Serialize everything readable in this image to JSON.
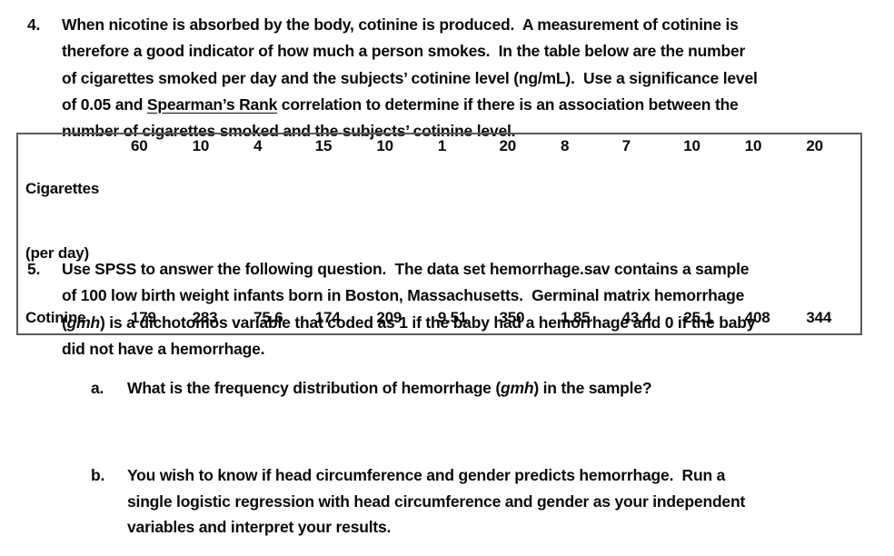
{
  "q4": {
    "number": "4.",
    "line1": "When nicotine is absorbed by the body, cotinine is produced.  A measurement of cotinine is",
    "line2": "therefore a good indicator of how much a person smokes.  In the table below are the number",
    "line3": "of cigarettes smoked per day and the subjects’ cotinine level (ng/mL).  Use a significance level",
    "line4_pre": "of 0.05 and ",
    "line4_underline": "Spearman’s Rank",
    "line4_post": " correlation to determine if there is an association between the",
    "line5": "number of cigarettes smoked and the subjects’ cotinine level."
  },
  "table": {
    "row1_label_line1": "Cigarettes",
    "row1_label_line2": "(per day)",
    "row1_values": [
      "60",
      "10",
      "4",
      "15",
      "10",
      "1",
      "20",
      "8",
      "7",
      "10",
      "10",
      "20"
    ],
    "row2_label": "Cotinine",
    "row2_values": [
      "179",
      "283",
      "75.6",
      "174",
      "209",
      "9.51",
      "350",
      "1.85",
      "43.4",
      "25.1",
      "408",
      "344"
    ]
  },
  "q5": {
    "number": "5.",
    "line1": "Use SPSS to answer the following question.  The data set hemorrhage.sav contains a sample",
    "line2": "of 100 low birth weight infants born in Boston, Massachusetts.  Germinal matrix hemorrhage",
    "line3_pre": "(",
    "line3_italic": "gmh",
    "line3_post": ") is a dichotomos variable that coded as 1 if the baby had a hemorrhage and 0 if the baby",
    "line4": "did not have a hemorrhage.",
    "item_a": {
      "marker": "a.",
      "pre": "What is the frequency distribution of hemorrhage (",
      "italic": "gmh",
      "post": ") in the sample?"
    },
    "item_b": {
      "marker": "b.",
      "line1": "You wish to know if head circumference and gender predicts hemorrhage.  Run a",
      "line2": "single logistic regression with head circumference and gender as your independent",
      "line3": "variables and interpret your results."
    }
  }
}
